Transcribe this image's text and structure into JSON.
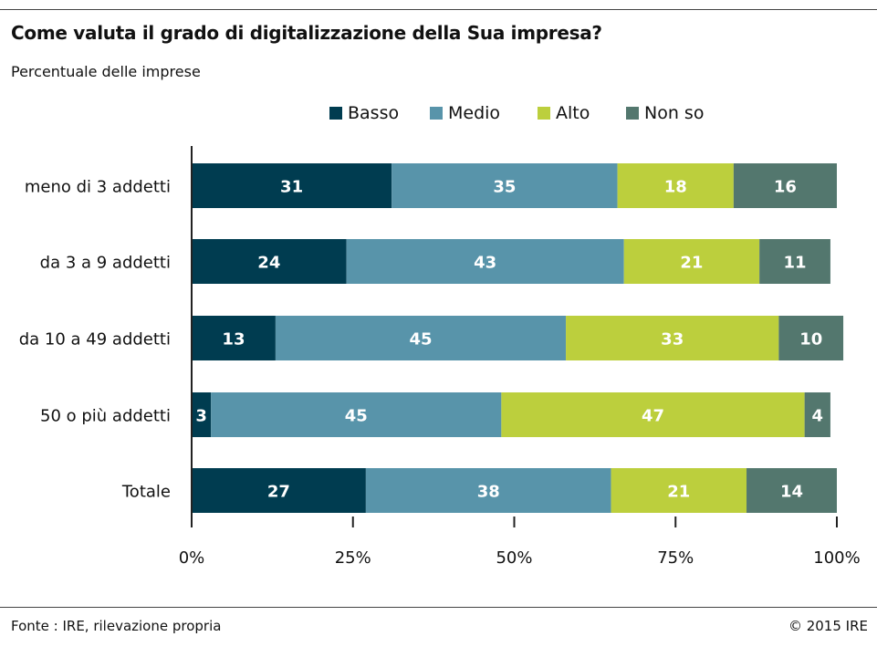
{
  "title": "Come valuta il grado di digitalizzazione della Sua impresa?",
  "subtitle": "Percentuale delle imprese",
  "footer": {
    "source": "Fonte : IRE, rilevazione propria",
    "copyright": "© 2015 IRE"
  },
  "chart_data": {
    "type": "bar",
    "orientation": "horizontal",
    "stacked": true,
    "categories": [
      "meno di 3 addetti",
      "da 3 a 9 addetti",
      "da 10 a 49 addetti",
      "50 o più addetti",
      "Totale"
    ],
    "series": [
      {
        "name": "Basso",
        "color": "#003c50",
        "values": [
          31,
          24,
          13,
          3,
          27
        ]
      },
      {
        "name": "Medio",
        "color": "#5894aa",
        "values": [
          35,
          43,
          45,
          45,
          38
        ]
      },
      {
        "name": "Alto",
        "color": "#bccf3d",
        "values": [
          18,
          21,
          33,
          47,
          21
        ]
      },
      {
        "name": "Non so",
        "color": "#53776e",
        "values": [
          16,
          11,
          10,
          4,
          14
        ]
      }
    ],
    "xlim": [
      0,
      100
    ],
    "xticks": [
      "0%",
      "25%",
      "50%",
      "75%",
      "100%"
    ],
    "legend_position": "top",
    "grid": false
  }
}
